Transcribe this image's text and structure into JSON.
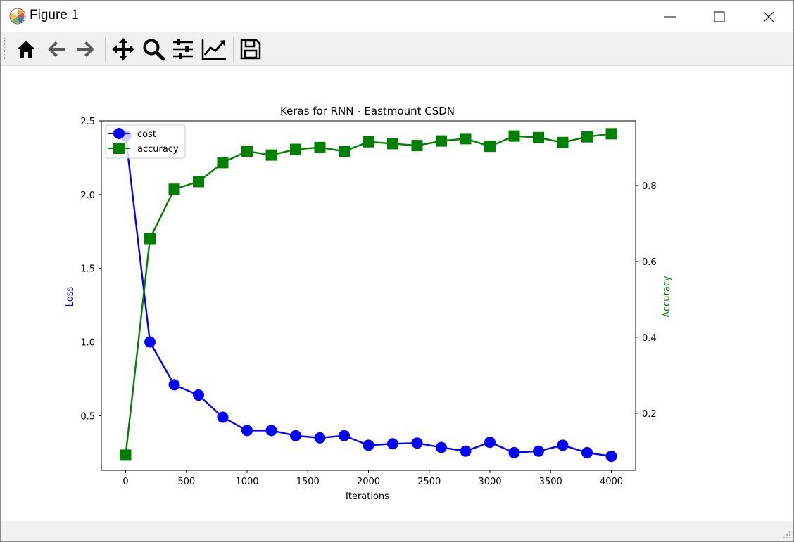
{
  "window": {
    "title": "Figure 1",
    "controls": [
      "minimize",
      "maximize",
      "close"
    ]
  },
  "toolbar": {
    "buttons": [
      {
        "name": "home",
        "icon": "home-icon"
      },
      {
        "name": "back",
        "icon": "arrow-left-icon"
      },
      {
        "name": "forward",
        "icon": "arrow-right-icon"
      },
      {
        "name": "pan",
        "icon": "move-icon"
      },
      {
        "name": "zoom",
        "icon": "magnifier-icon"
      },
      {
        "name": "subplots",
        "icon": "sliders-icon"
      },
      {
        "name": "edit-axes",
        "icon": "line-chart-icon"
      },
      {
        "name": "save",
        "icon": "floppy-disk-icon"
      }
    ]
  },
  "chart_data": {
    "type": "line",
    "title": "Keras for RNN - Eastmount CSDN",
    "xlabel": "Iterations",
    "ylabel": "Loss",
    "y2label": "Accuracy",
    "xlim": [
      -200,
      4200
    ],
    "ylim": [
      0.13,
      2.5
    ],
    "y2lim": [
      0.05,
      0.97
    ],
    "xticks": [
      "0",
      "500",
      "1000",
      "1500",
      "2000",
      "2500",
      "3000",
      "3500",
      "4000"
    ],
    "yticks": [
      "0.5",
      "1.0",
      "1.5",
      "2.0",
      "2.5"
    ],
    "y2ticks": [
      "0.2",
      "0.4",
      "0.6",
      "0.8"
    ],
    "legend": {
      "position": "top-left",
      "entries": [
        "cost",
        "accuracy"
      ]
    },
    "colors": {
      "cost": "#0000ff",
      "accuracy": "#008000"
    },
    "x": [
      0,
      200,
      400,
      600,
      800,
      1000,
      1200,
      1400,
      1600,
      1800,
      2000,
      2200,
      2400,
      2600,
      2800,
      3000,
      3200,
      3400,
      3600,
      3800,
      4000
    ],
    "series": [
      {
        "name": "cost",
        "axis": "left",
        "marker": "circle",
        "values": [
          2.4,
          1.0,
          0.71,
          0.64,
          0.49,
          0.4,
          0.4,
          0.365,
          0.35,
          0.365,
          0.3,
          0.31,
          0.315,
          0.285,
          0.26,
          0.32,
          0.25,
          0.26,
          0.3,
          0.25,
          0.225
        ]
      },
      {
        "name": "accuracy",
        "axis": "right",
        "marker": "square",
        "values": [
          0.09,
          0.66,
          0.79,
          0.81,
          0.86,
          0.89,
          0.88,
          0.895,
          0.9,
          0.89,
          0.915,
          0.91,
          0.905,
          0.917,
          0.923,
          0.903,
          0.93,
          0.926,
          0.913,
          0.928,
          0.936
        ]
      }
    ]
  }
}
